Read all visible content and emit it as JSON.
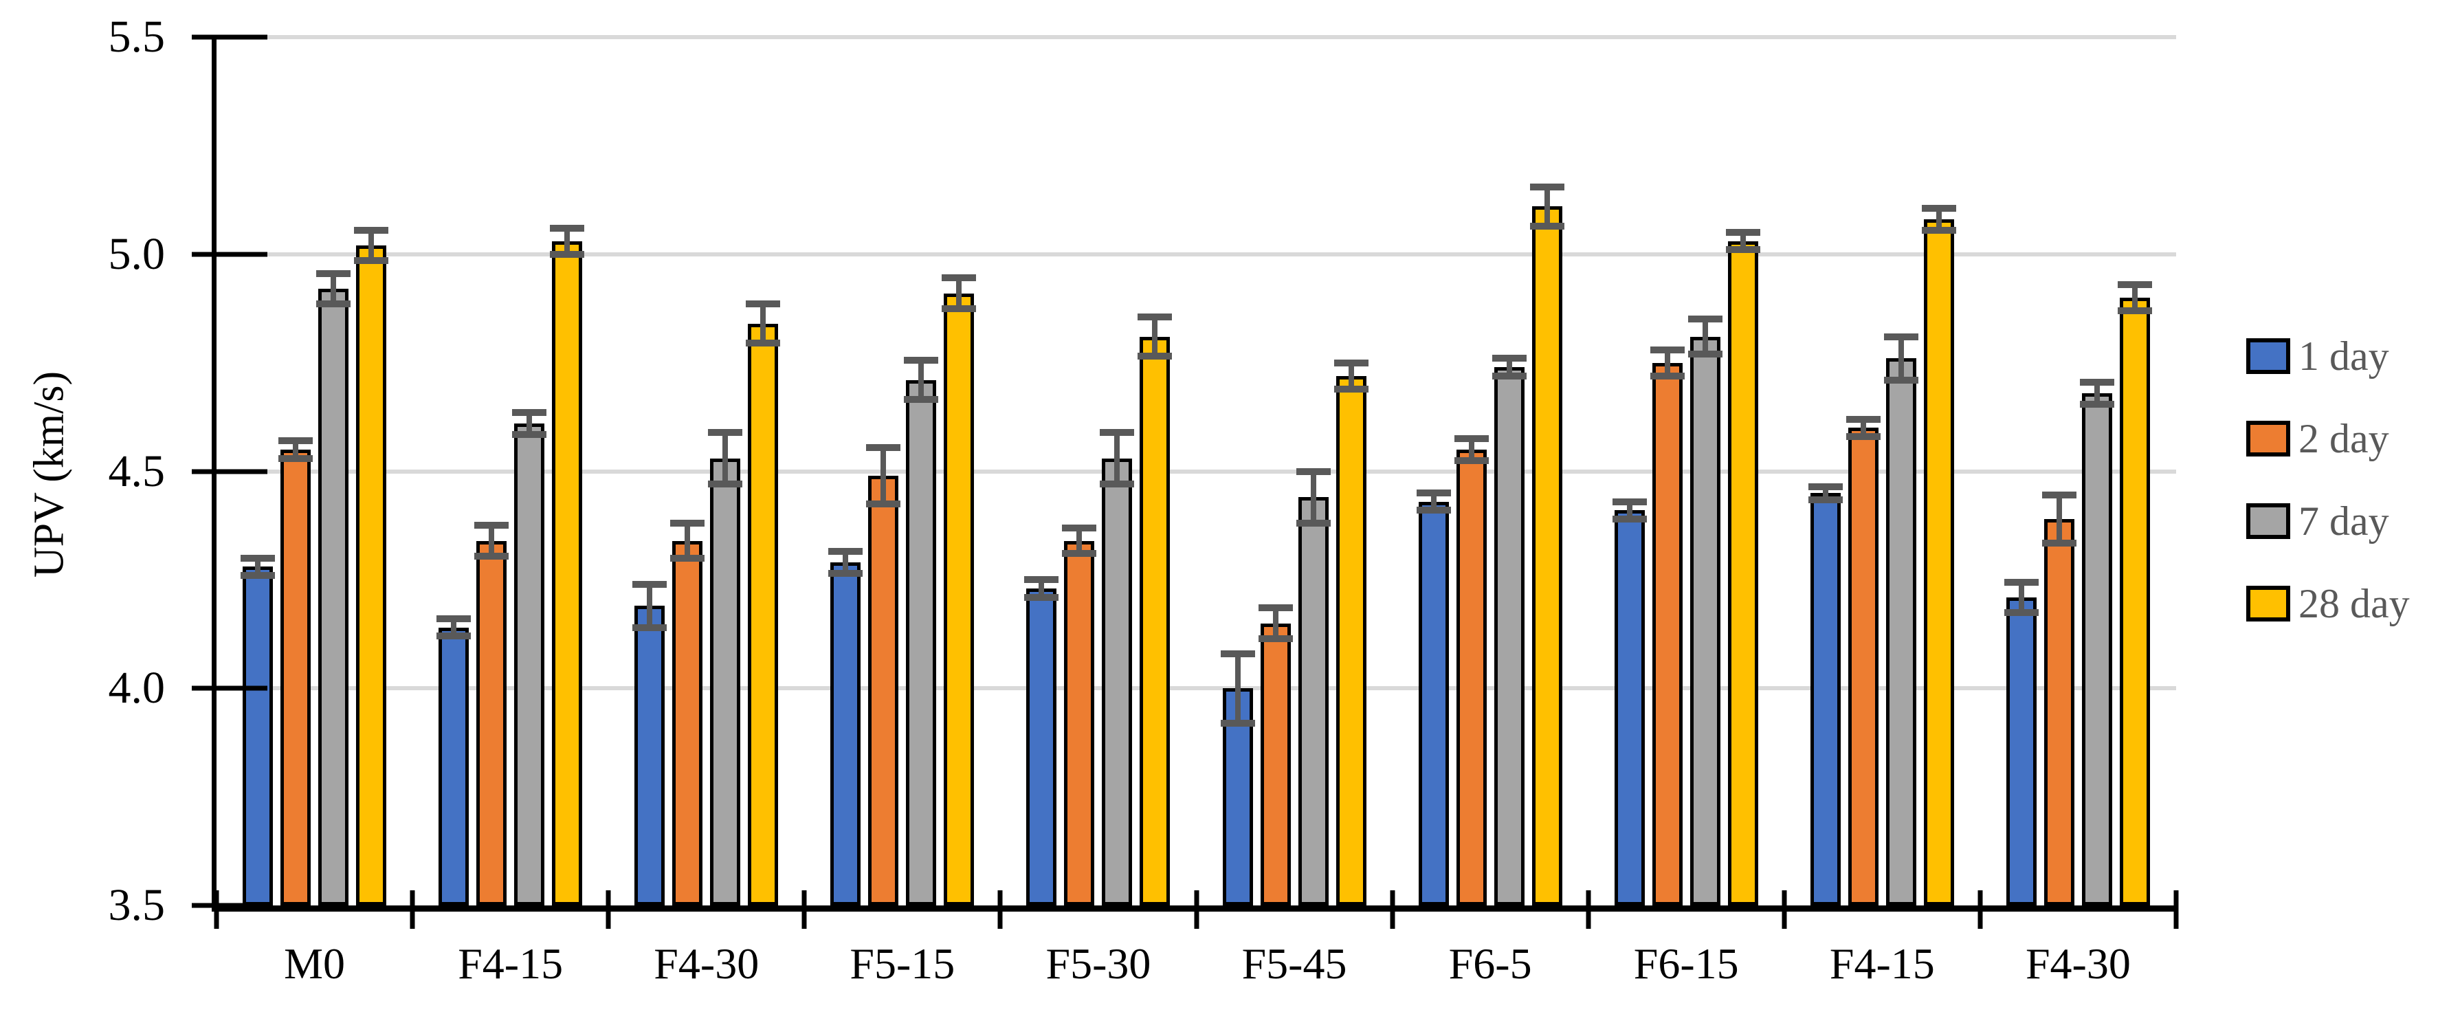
{
  "chart_data": {
    "type": "bar",
    "title": "",
    "xlabel": "",
    "ylabel": "UPV (km/s)",
    "ylim": [
      3.5,
      5.5
    ],
    "ytick_step": 0.5,
    "ytick_labels": [
      "5.5",
      "5.0",
      "4.5",
      "4.0",
      "3.5"
    ],
    "grid": "horizontal gridlines at 4.0, 4.5, 5.0, 5.5",
    "legend_position": "right",
    "categories": [
      "M0",
      "F4-15",
      "F4-30",
      "F5-15",
      "F5-30",
      "F5-45",
      "F6-5",
      "F6-15",
      "F4-15",
      "F4-30"
    ],
    "series": [
      {
        "name": "1 day",
        "color": "#4472C4",
        "values": [
          4.28,
          4.14,
          4.19,
          4.29,
          4.23,
          4.0,
          4.43,
          4.41,
          4.45,
          4.21
        ],
        "errors": [
          0.02,
          0.02,
          0.05,
          0.025,
          0.02,
          0.08,
          0.02,
          0.02,
          0.015,
          0.035
        ]
      },
      {
        "name": "2 day",
        "color": "#ED7D31",
        "values": [
          4.55,
          4.34,
          4.34,
          4.49,
          4.34,
          4.15,
          4.55,
          4.75,
          4.6,
          4.39
        ],
        "errors": [
          0.02,
          0.035,
          0.04,
          0.065,
          0.03,
          0.035,
          0.025,
          0.03,
          0.02,
          0.055
        ]
      },
      {
        "name": "7 day",
        "color": "#A5A5A5",
        "values": [
          4.92,
          4.61,
          4.53,
          4.71,
          4.53,
          4.44,
          4.74,
          4.81,
          4.76,
          4.68
        ],
        "errors": [
          0.035,
          0.025,
          0.06,
          0.045,
          0.06,
          0.06,
          0.02,
          0.04,
          0.05,
          0.025
        ]
      },
      {
        "name": "28 day",
        "color": "#FFC000",
        "values": [
          5.02,
          5.03,
          4.84,
          4.91,
          4.81,
          4.72,
          5.11,
          5.03,
          5.08,
          4.9
        ],
        "errors": [
          0.035,
          0.03,
          0.045,
          0.035,
          0.045,
          0.03,
          0.045,
          0.02,
          0.025,
          0.03
        ]
      }
    ]
  },
  "styles": {
    "background": "#FFFFFF",
    "axis_color": "#000000",
    "gridline_color": "#D9D9D9",
    "error_bar_color": "#595959",
    "tick_label_color": "#000000",
    "legend_text_color": "#595959"
  }
}
